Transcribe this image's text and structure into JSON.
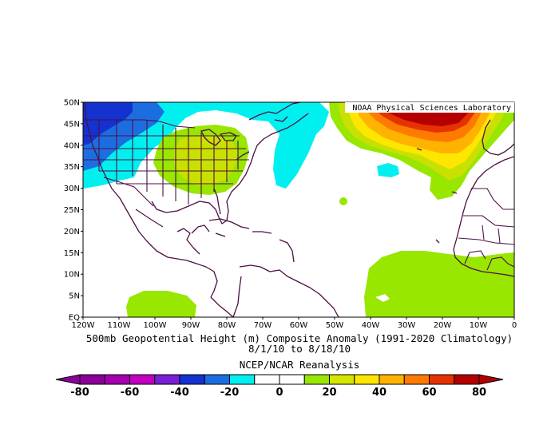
{
  "map": {
    "credit": "NOAA Physical Sciences Laboratory",
    "lat_labels": [
      "50N",
      "45N",
      "40N",
      "35N",
      "30N",
      "25N",
      "20N",
      "15N",
      "10N",
      "5N",
      "EQ"
    ],
    "lon_labels": [
      "120W",
      "110W",
      "100W",
      "90W",
      "80W",
      "70W",
      "60W",
      "50W",
      "40W",
      "30W",
      "20W",
      "10W",
      "0"
    ],
    "extent": {
      "lon": [
        -120,
        0
      ],
      "lat": [
        0,
        50
      ]
    }
  },
  "caption": {
    "line1": "500mb Geopotential Height (m) Composite Anomaly (1991-2020 Climatology)",
    "line2": "8/1/10  to 8/18/10",
    "line3": "NCEP/NCAR Reanalysis"
  },
  "colorbar": {
    "labels": [
      "-80",
      "-60",
      "-40",
      "-20",
      "0",
      "20",
      "40",
      "60",
      "80"
    ],
    "colors": [
      "#8a0099",
      "#a500b0",
      "#c200c2",
      "#7a1fd6",
      "#1432d0",
      "#1c6ee0",
      "#00f0f0",
      "#ffffff",
      "#ffffff",
      "#99e600",
      "#d4e600",
      "#ffe600",
      "#ffb300",
      "#ff7a00",
      "#e63200",
      "#b40000"
    ]
  },
  "colors": {
    "coast": "#4b0f45",
    "anomaly_cyan": "#00f0f0",
    "anomaly_blue": "#1c6ee0",
    "anomaly_dark_blue": "#1432d0",
    "anomaly_green": "#99e600",
    "anomaly_yellowgreen": "#c8e100",
    "anomaly_yellow": "#ffe600",
    "anomaly_orange": "#ffb300",
    "anomaly_dark_orange": "#ff7a00",
    "anomaly_red": "#e63200",
    "anomaly_dark_red": "#b40000"
  }
}
